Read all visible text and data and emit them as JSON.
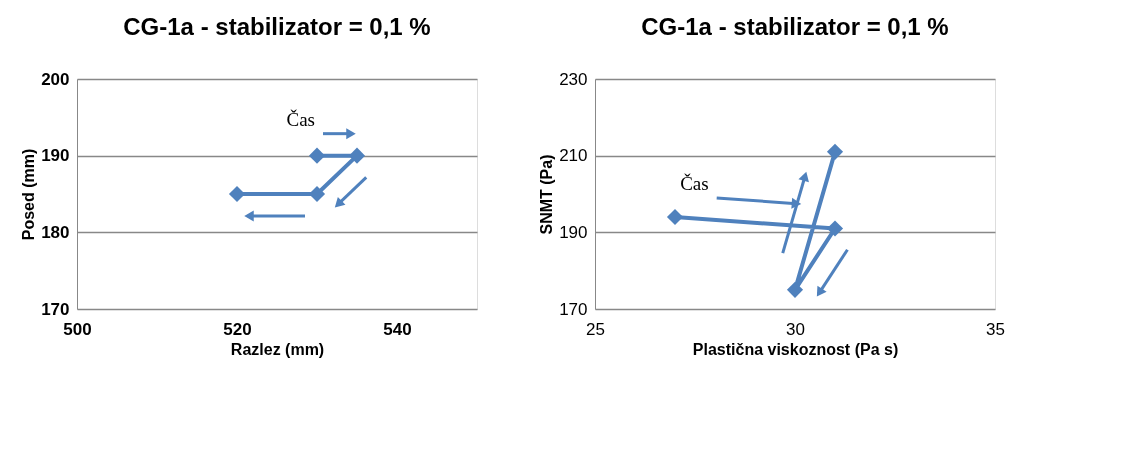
{
  "chart_data": [
    {
      "type": "line",
      "title": "CG-1a - stabilizator = 0,1 %",
      "xlabel": "Razlez (mm)",
      "ylabel": "Posed (mm)",
      "xlim": [
        500,
        550
      ],
      "xticks": [
        500,
        520,
        540
      ],
      "ylim": [
        170,
        200
      ],
      "yticks": [
        170,
        180,
        190,
        200
      ],
      "grid": "y",
      "marker": "diamond",
      "line_style": "solid",
      "series": [
        {
          "color": "#4f81bd",
          "x": [
            530,
            535,
            530,
            520
          ],
          "values": [
            190,
            190,
            185,
            185
          ]
        }
      ],
      "annotations": [
        "Čas"
      ]
    },
    {
      "type": "line",
      "title": "CG-1a - stabilizator = 0,1 %",
      "xlabel": "Plastična viskoznost (Pa s)",
      "ylabel": "SNMT (Pa)",
      "xlim": [
        25,
        35
      ],
      "xticks": [
        25,
        30,
        35
      ],
      "ylim": [
        170,
        230
      ],
      "yticks": [
        170,
        190,
        210,
        230
      ],
      "grid": "y",
      "marker": "diamond",
      "line_style": "solid",
      "series": [
        {
          "color": "#4f81bd",
          "x": [
            27,
            31,
            30,
            31
          ],
          "values": [
            194,
            191,
            175,
            211
          ]
        }
      ],
      "annotations": [
        "Čas"
      ]
    }
  ]
}
